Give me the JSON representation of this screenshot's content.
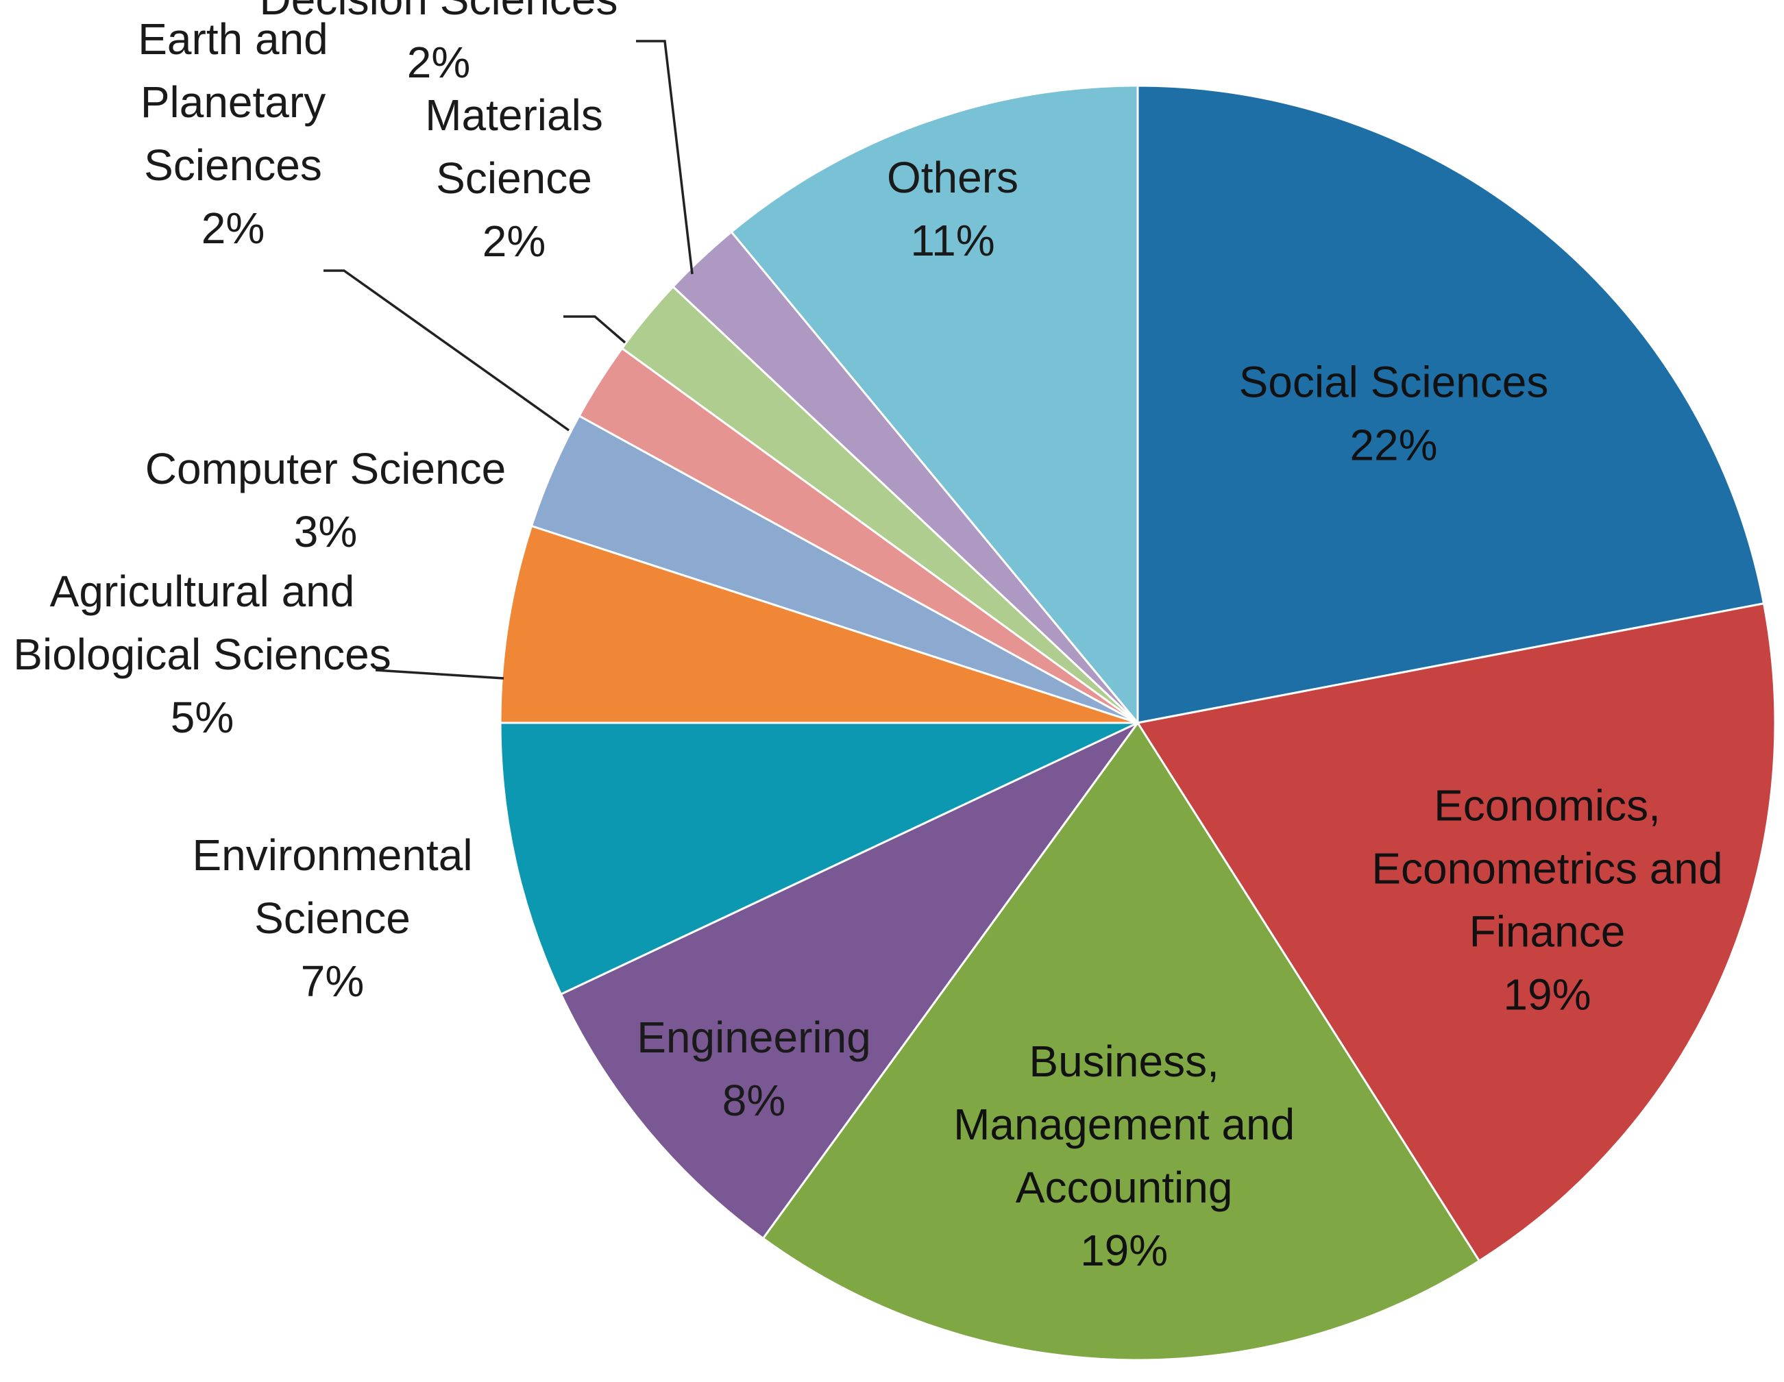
{
  "chart_data": {
    "type": "pie",
    "title": "",
    "start_angle_deg": 0,
    "direction": "clockwise",
    "slices": [
      {
        "name": "Social Sciences",
        "label_lines": [
          "Social Sciences"
        ],
        "value": 22,
        "value_label": "22%",
        "color": "#1f6fa7",
        "label_position": "inside"
      },
      {
        "name": "Economics, Econometrics and Finance",
        "label_lines": [
          "Economics,",
          "Econometrics and",
          "Finance"
        ],
        "value": 19,
        "value_label": "19%",
        "color": "#c64342",
        "label_position": "inside"
      },
      {
        "name": "Business, Management and Accounting",
        "label_lines": [
          "Business,",
          "Management and",
          "Accounting"
        ],
        "value": 19,
        "value_label": "19%",
        "color": "#7fa744",
        "label_position": "inside"
      },
      {
        "name": "Engineering",
        "label_lines": [
          "Engineering"
        ],
        "value": 8,
        "value_label": "8%",
        "color": "#7a5893",
        "label_position": "inside"
      },
      {
        "name": "Environmental Science",
        "label_lines": [
          "Environmental",
          "Science"
        ],
        "value": 7,
        "value_label": "7%",
        "color": "#0c98b0",
        "label_position": "outside"
      },
      {
        "name": "Agricultural and Biological Sciences",
        "label_lines": [
          "Agricultural and",
          "Biological Sciences"
        ],
        "value": 5,
        "value_label": "5%",
        "color": "#f08736",
        "label_position": "outside-leader"
      },
      {
        "name": "Computer Science",
        "label_lines": [
          "Computer Science"
        ],
        "value": 3,
        "value_label": "3%",
        "color": "#8ca9d0",
        "label_position": "outside"
      },
      {
        "name": "Earth and Planetary Sciences",
        "label_lines": [
          "Earth and",
          "Planetary",
          "Sciences"
        ],
        "value": 2,
        "value_label": "2%",
        "color": "#e69492",
        "label_position": "outside-leader"
      },
      {
        "name": "Materials Science",
        "label_lines": [
          "Materials",
          "Science"
        ],
        "value": 2,
        "value_label": "2%",
        "color": "#afcd8f",
        "label_position": "outside-leader"
      },
      {
        "name": "Decision Sciences",
        "label_lines": [
          "Decision Sciences"
        ],
        "value": 2,
        "value_label": "2%",
        "color": "#ad99c2",
        "label_position": "outside-leader"
      },
      {
        "name": "Others",
        "label_lines": [
          "Others"
        ],
        "value": 11,
        "value_label": "11%",
        "color": "#79c1d5",
        "label_position": "inside"
      }
    ]
  }
}
